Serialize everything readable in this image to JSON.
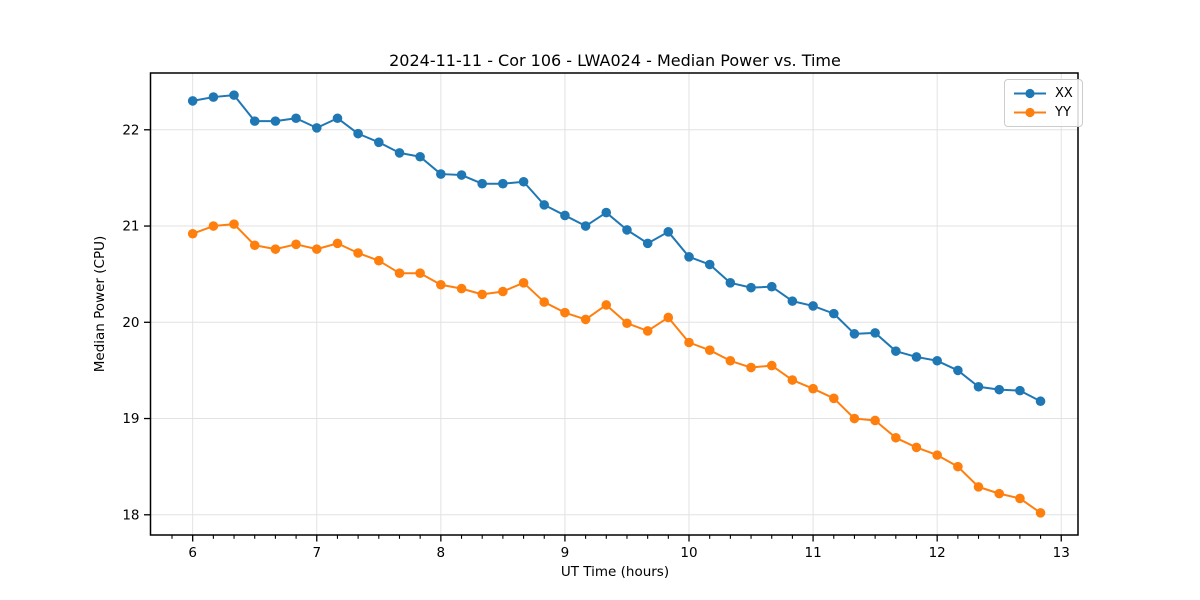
{
  "figure": {
    "title": "2024-11-11 - Cor 106 - LWA024 - Median Power vs. Time"
  },
  "chart_data": {
    "type": "line",
    "title": "2024-11-11 - Cor 106 - LWA024 - Median Power vs. Time",
    "xlabel": "UT Time (hours)",
    "ylabel": "Median Power (CPU)",
    "xlim": [
      5.66,
      13.135
    ],
    "ylim": [
      17.79,
      22.59
    ],
    "xticks": [
      6,
      7,
      8,
      9,
      10,
      11,
      12,
      13
    ],
    "yticks": [
      18,
      19,
      20,
      21,
      22
    ],
    "minor_xtick_step": 0.16667,
    "grid": true,
    "grid_color": "#e2e2e2",
    "legend_position": "upper right",
    "x": [
      6.0,
      6.167,
      6.333,
      6.5,
      6.667,
      6.833,
      7.0,
      7.167,
      7.333,
      7.5,
      7.667,
      7.833,
      8.0,
      8.167,
      8.333,
      8.5,
      8.667,
      8.833,
      9.0,
      9.167,
      9.333,
      9.5,
      9.667,
      9.833,
      10.0,
      10.167,
      10.333,
      10.5,
      10.667,
      10.833,
      11.0,
      11.167,
      11.333,
      11.5,
      11.667,
      11.833,
      12.0,
      12.167,
      12.333,
      12.5,
      12.667,
      12.833
    ],
    "series": [
      {
        "name": "XX",
        "color": "#1f77b4",
        "values": [
          22.3,
          22.34,
          22.36,
          22.09,
          22.09,
          22.12,
          22.02,
          22.12,
          21.96,
          21.87,
          21.76,
          21.72,
          21.54,
          21.53,
          21.44,
          21.44,
          21.46,
          21.22,
          21.11,
          21.0,
          21.14,
          20.96,
          20.82,
          20.94,
          20.68,
          20.6,
          20.41,
          20.36,
          20.37,
          20.22,
          20.17,
          20.09,
          19.88,
          19.89,
          19.7,
          19.64,
          19.6,
          19.5,
          19.33,
          19.3,
          19.29,
          19.18
        ]
      },
      {
        "name": "YY",
        "color": "#ff7f0e",
        "values": [
          20.92,
          21.0,
          21.02,
          20.8,
          20.76,
          20.81,
          20.76,
          20.82,
          20.72,
          20.64,
          20.51,
          20.51,
          20.39,
          20.35,
          20.29,
          20.32,
          20.41,
          20.21,
          20.1,
          20.03,
          20.18,
          19.99,
          19.91,
          20.05,
          19.79,
          19.71,
          19.6,
          19.53,
          19.55,
          19.4,
          19.31,
          19.21,
          19.0,
          18.98,
          18.8,
          18.7,
          18.62,
          18.5,
          18.29,
          18.22,
          18.17,
          18.02
        ]
      }
    ]
  }
}
